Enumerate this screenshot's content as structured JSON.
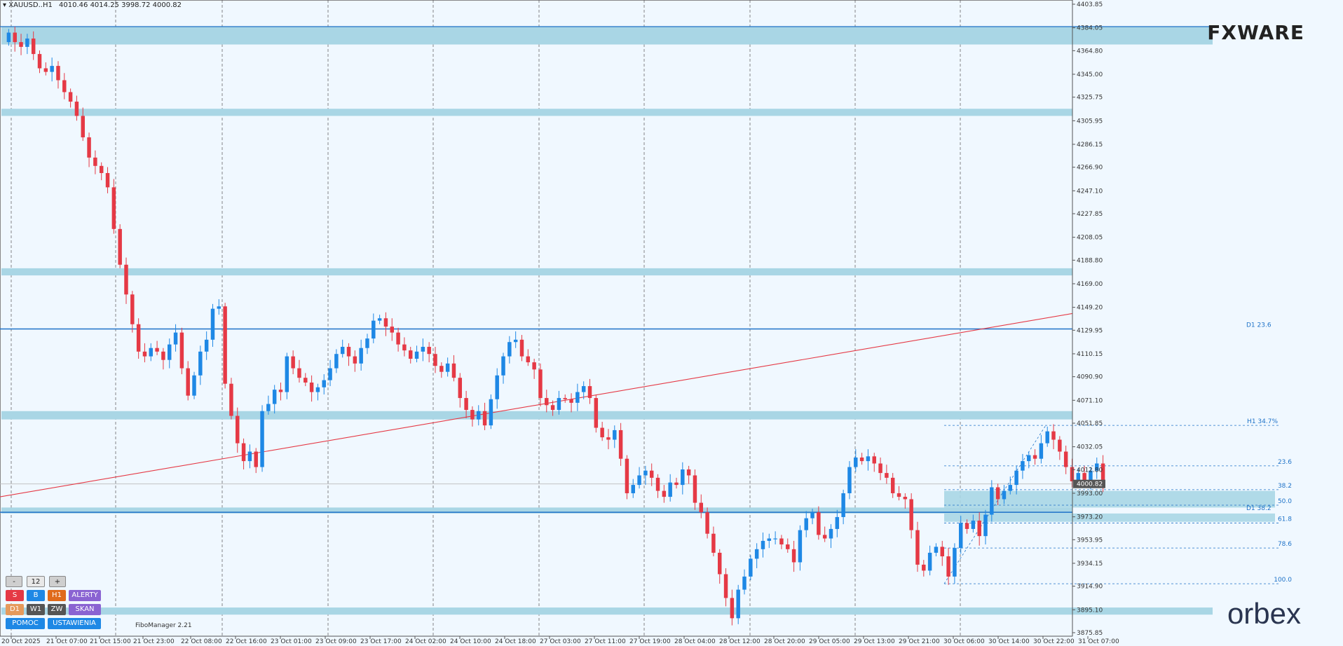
{
  "header": {
    "symbol": "XAUUSD..H1",
    "ohlc": "4010.46 4014.25 3998.72 4000.82"
  },
  "logos": {
    "top": "FXWARE",
    "bottom": "orbex"
  },
  "fibo_manager": "FiboManager 2.21",
  "current_price": "4000.82",
  "price_axis": [
    "4403.85",
    "4384.05",
    "4364.80",
    "4345.00",
    "4325.75",
    "4305.95",
    "4286.15",
    "4266.90",
    "4247.10",
    "4227.85",
    "4208.05",
    "4188.80",
    "4169.00",
    "4149.20",
    "4129.95",
    "4110.15",
    "4090.90",
    "4071.10",
    "4051.85",
    "4032.05",
    "4012.80",
    "3993.00",
    "3973.20",
    "3953.95",
    "3934.15",
    "3914.90",
    "3895.10",
    "3875.85"
  ],
  "time_axis": [
    "20 Oct 2025",
    "21 Oct 07:00",
    "21 Oct 15:00",
    "21 Oct 23:00",
    "22 Oct 08:00",
    "22 Oct 16:00",
    "23 Oct 01:00",
    "23 Oct 09:00",
    "23 Oct 17:00",
    "24 Oct 02:00",
    "24 Oct 10:00",
    "24 Oct 18:00",
    "27 Oct 03:00",
    "27 Oct 11:00",
    "27 Oct 19:00",
    "28 Oct 04:00",
    "28 Oct 12:00",
    "28 Oct 20:00",
    "29 Oct 05:00",
    "29 Oct 13:00",
    "29 Oct 21:00",
    "30 Oct 06:00",
    "30 Oct 14:00",
    "30 Oct 22:00",
    "31 Oct 07:00"
  ],
  "levels": {
    "d1_236": "D1 23.6",
    "d1_382": "D1 38.2",
    "h1": "H1 34.7%"
  },
  "fib_levels": [
    "23.6",
    "38.2",
    "50.0",
    "61.8",
    "78.6",
    "100.0"
  ],
  "panel": {
    "minus": "-",
    "count": "12",
    "plus": "+",
    "s": "S",
    "b": "B",
    "h1": "H1",
    "alerty": "ALERTY",
    "d1": "D1",
    "w1": "W1",
    "zw": "ZW",
    "skan": "SKAN",
    "pomoc": "POMOC",
    "ustawienia": "USTAWIENIA"
  },
  "colors": {
    "bull": "#1e88e5",
    "bear": "#e53945",
    "zone": "#a9d6e5",
    "trend": "#e53945",
    "level": "#1e72c8",
    "background": "#f0f8ff"
  },
  "chart_data": {
    "type": "candlestick",
    "symbol": "XAUUSD..H1",
    "timeframe": "H1",
    "ylim": [
      3875.85,
      4403.85
    ],
    "last_ohlc": {
      "open": 4010.46,
      "high": 4014.25,
      "low": 3998.72,
      "close": 4000.82
    },
    "closes": [
      4380,
      4372,
      4368,
      4375,
      4362,
      4350,
      4347,
      4352,
      4340,
      4330,
      4322,
      4310,
      4292,
      4275,
      4268,
      4262,
      4250,
      4215,
      4185,
      4160,
      4135,
      4112,
      4108,
      4115,
      4112,
      4105,
      4118,
      4128,
      4098,
      4075,
      4092,
      4112,
      4122,
      4148,
      4150,
      4085,
      4058,
      4035,
      4020,
      4028,
      4015,
      4062,
      4068,
      4080,
      4078,
      4108,
      4098,
      4090,
      4086,
      4078,
      4082,
      4088,
      4098,
      4110,
      4116,
      4108,
      4102,
      4115,
      4123,
      4138,
      4140,
      4133,
      4128,
      4118,
      4113,
      4106,
      4112,
      4116,
      4110,
      4100,
      4095,
      4102,
      4090,
      4073,
      4063,
      4055,
      4062,
      4050,
      4072,
      4092,
      4108,
      4120,
      4122,
      4108,
      4103,
      4097,
      4073,
      4067,
      4063,
      4073,
      4072,
      4069,
      4078,
      4083,
      4073,
      4048,
      4040,
      4038,
      4046,
      4022,
      3993,
      4000,
      4008,
      4012,
      4006,
      3995,
      3990,
      4002,
      4000,
      4013,
      4008,
      3985,
      3977,
      3959,
      3943,
      3925,
      3905,
      3888,
      3912,
      3923,
      3938,
      3946,
      3953,
      3955,
      3955,
      3950,
      3946,
      3935,
      3962,
      3972,
      3977,
      3958,
      3955,
      3963,
      3973,
      3993,
      4015,
      4023,
      4020,
      4024,
      4018,
      4010,
      4006,
      3993,
      3990,
      3988,
      3962,
      3933,
      3928,
      3943,
      3948,
      3940,
      3923,
      3947,
      3968,
      3963,
      3970,
      3957,
      3975,
      3998,
      3988,
      3995,
      4000,
      4012,
      4020,
      4025,
      4022,
      4035,
      4045,
      4038,
      4028,
      4015,
      4003,
      4010,
      4004,
      4012,
      4018,
      4000
    ]
  }
}
